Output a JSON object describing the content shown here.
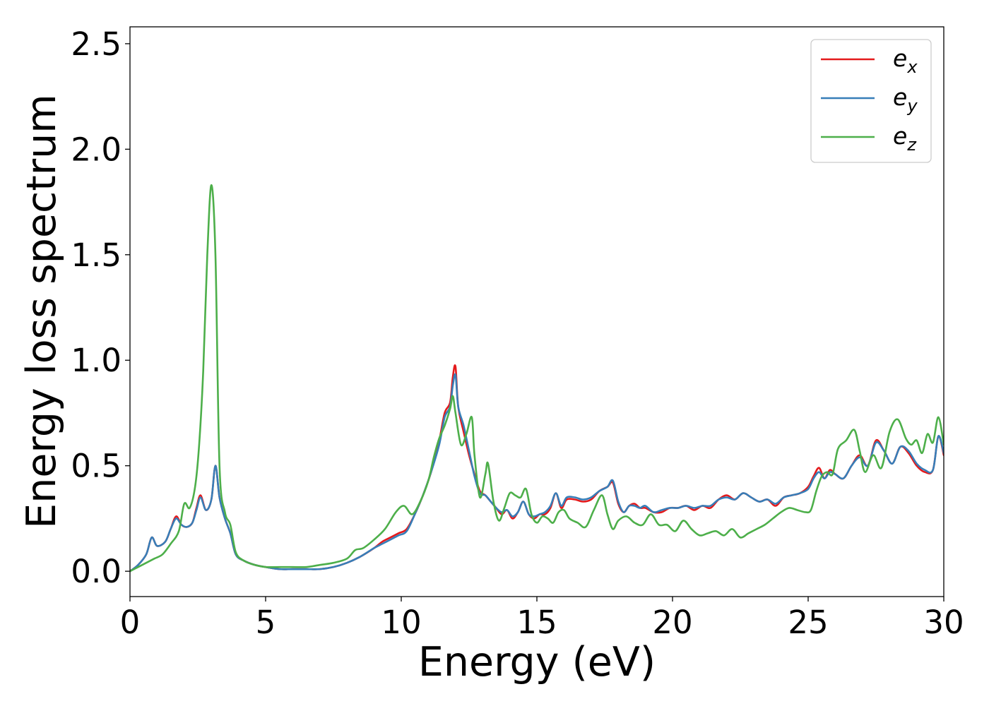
{
  "chart_data": {
    "type": "line",
    "title": "",
    "xlabel": "Energy (eV)",
    "ylabel": "Energy loss spectrum",
    "xlim": [
      0,
      30
    ],
    "ylim": [
      -0.12,
      2.58
    ],
    "xticks": [
      0,
      5,
      10,
      15,
      20,
      25,
      30
    ],
    "xtick_labels": [
      "0",
      "5",
      "10",
      "15",
      "20",
      "25",
      "30"
    ],
    "yticks": [
      0.0,
      0.5,
      1.0,
      1.5,
      2.0,
      2.5
    ],
    "ytick_labels": [
      "0.0",
      "0.5",
      "1.0",
      "1.5",
      "2.0",
      "2.5"
    ],
    "grid": false,
    "legend_position": "top-right",
    "series": [
      {
        "name": "e_x",
        "legend_main": "e",
        "legend_sub": "x",
        "color": "#e41a1c",
        "x": [
          0,
          0.3,
          0.6,
          0.8,
          1.0,
          1.3,
          1.5,
          1.7,
          1.9,
          2.1,
          2.3,
          2.45,
          2.6,
          2.8,
          3.0,
          3.15,
          3.3,
          3.5,
          3.7,
          3.9,
          4.2,
          4.6,
          5.0,
          5.5,
          6.0,
          6.5,
          7.0,
          7.5,
          8.0,
          8.5,
          9.0,
          9.3,
          9.6,
          9.9,
          10.2,
          10.5,
          10.8,
          11.1,
          11.4,
          11.6,
          11.8,
          11.9,
          12.0,
          12.1,
          12.3,
          12.5,
          12.7,
          12.9,
          13.1,
          13.3,
          13.5,
          13.7,
          13.9,
          14.1,
          14.3,
          14.5,
          14.7,
          14.9,
          15.1,
          15.3,
          15.5,
          15.7,
          15.9,
          16.1,
          16.4,
          16.7,
          17.0,
          17.3,
          17.6,
          17.8,
          18.0,
          18.2,
          18.4,
          18.6,
          18.8,
          19.0,
          19.3,
          19.6,
          19.9,
          20.2,
          20.5,
          20.8,
          21.1,
          21.4,
          21.7,
          22.0,
          22.3,
          22.6,
          22.9,
          23.2,
          23.5,
          23.8,
          24.1,
          24.4,
          24.7,
          25.0,
          25.2,
          25.4,
          25.6,
          25.8,
          26.0,
          26.3,
          26.6,
          26.9,
          27.2,
          27.5,
          27.8,
          28.1,
          28.4,
          28.7,
          29.0,
          29.3,
          29.6,
          29.8,
          30.0
        ],
        "y": [
          0.0,
          0.03,
          0.08,
          0.16,
          0.12,
          0.14,
          0.2,
          0.26,
          0.22,
          0.21,
          0.23,
          0.3,
          0.36,
          0.29,
          0.34,
          0.5,
          0.35,
          0.25,
          0.18,
          0.08,
          0.05,
          0.03,
          0.02,
          0.01,
          0.01,
          0.01,
          0.01,
          0.02,
          0.04,
          0.07,
          0.11,
          0.14,
          0.16,
          0.18,
          0.2,
          0.27,
          0.36,
          0.47,
          0.62,
          0.75,
          0.8,
          0.92,
          0.97,
          0.78,
          0.66,
          0.55,
          0.46,
          0.38,
          0.36,
          0.33,
          0.3,
          0.27,
          0.29,
          0.25,
          0.28,
          0.33,
          0.27,
          0.25,
          0.27,
          0.27,
          0.3,
          0.37,
          0.3,
          0.34,
          0.34,
          0.33,
          0.34,
          0.38,
          0.4,
          0.42,
          0.32,
          0.28,
          0.31,
          0.32,
          0.3,
          0.3,
          0.28,
          0.28,
          0.3,
          0.3,
          0.31,
          0.29,
          0.31,
          0.3,
          0.34,
          0.36,
          0.34,
          0.37,
          0.35,
          0.33,
          0.34,
          0.31,
          0.35,
          0.36,
          0.37,
          0.4,
          0.45,
          0.49,
          0.44,
          0.48,
          0.46,
          0.44,
          0.5,
          0.55,
          0.5,
          0.62,
          0.57,
          0.51,
          0.59,
          0.56,
          0.5,
          0.47,
          0.48,
          0.64,
          0.55
        ]
      },
      {
        "name": "e_y",
        "legend_main": "e",
        "legend_sub": "y",
        "color": "#377eb8",
        "x": [
          0,
          0.3,
          0.6,
          0.8,
          1.0,
          1.3,
          1.5,
          1.7,
          1.9,
          2.1,
          2.3,
          2.45,
          2.6,
          2.8,
          3.0,
          3.15,
          3.3,
          3.5,
          3.7,
          3.9,
          4.2,
          4.6,
          5.0,
          5.5,
          6.0,
          6.5,
          7.0,
          7.5,
          8.0,
          8.5,
          9.0,
          9.3,
          9.6,
          9.9,
          10.2,
          10.5,
          10.8,
          11.1,
          11.4,
          11.6,
          11.8,
          11.9,
          12.0,
          12.1,
          12.3,
          12.5,
          12.7,
          12.9,
          13.1,
          13.3,
          13.5,
          13.7,
          13.9,
          14.1,
          14.3,
          14.5,
          14.7,
          14.9,
          15.1,
          15.3,
          15.5,
          15.7,
          15.9,
          16.1,
          16.4,
          16.7,
          17.0,
          17.3,
          17.6,
          17.8,
          18.0,
          18.2,
          18.4,
          18.6,
          18.8,
          19.0,
          19.3,
          19.6,
          19.9,
          20.2,
          20.5,
          20.8,
          21.1,
          21.4,
          21.7,
          22.0,
          22.3,
          22.6,
          22.9,
          23.2,
          23.5,
          23.8,
          24.1,
          24.4,
          24.7,
          25.0,
          25.2,
          25.4,
          25.6,
          25.8,
          26.0,
          26.3,
          26.6,
          26.9,
          27.2,
          27.5,
          27.8,
          28.1,
          28.4,
          28.7,
          29.0,
          29.3,
          29.6,
          29.8,
          30.0
        ],
        "y": [
          0.0,
          0.03,
          0.08,
          0.16,
          0.12,
          0.14,
          0.2,
          0.25,
          0.22,
          0.21,
          0.23,
          0.29,
          0.35,
          0.29,
          0.34,
          0.5,
          0.35,
          0.25,
          0.18,
          0.08,
          0.05,
          0.03,
          0.02,
          0.01,
          0.01,
          0.01,
          0.01,
          0.02,
          0.04,
          0.07,
          0.11,
          0.13,
          0.15,
          0.17,
          0.19,
          0.27,
          0.36,
          0.47,
          0.6,
          0.73,
          0.78,
          0.88,
          0.93,
          0.78,
          0.69,
          0.57,
          0.45,
          0.37,
          0.36,
          0.33,
          0.3,
          0.28,
          0.29,
          0.26,
          0.28,
          0.33,
          0.27,
          0.26,
          0.27,
          0.28,
          0.31,
          0.37,
          0.31,
          0.35,
          0.35,
          0.34,
          0.35,
          0.38,
          0.4,
          0.43,
          0.33,
          0.28,
          0.31,
          0.31,
          0.3,
          0.31,
          0.28,
          0.29,
          0.3,
          0.3,
          0.31,
          0.3,
          0.31,
          0.31,
          0.34,
          0.35,
          0.34,
          0.37,
          0.35,
          0.33,
          0.34,
          0.32,
          0.35,
          0.36,
          0.37,
          0.39,
          0.44,
          0.47,
          0.44,
          0.47,
          0.46,
          0.44,
          0.5,
          0.54,
          0.5,
          0.61,
          0.57,
          0.51,
          0.59,
          0.57,
          0.51,
          0.48,
          0.48,
          0.64,
          0.56
        ]
      },
      {
        "name": "e_z",
        "legend_main": "e",
        "legend_sub": "z",
        "color": "#4daf4a",
        "x": [
          0,
          0.3,
          0.6,
          0.9,
          1.2,
          1.5,
          1.8,
          2.0,
          2.2,
          2.4,
          2.55,
          2.7,
          2.85,
          3.0,
          3.15,
          3.3,
          3.5,
          3.7,
          3.9,
          4.2,
          4.6,
          5.0,
          5.5,
          6.0,
          6.5,
          7.0,
          7.5,
          8.0,
          8.3,
          8.6,
          9.0,
          9.4,
          9.8,
          10.1,
          10.4,
          10.7,
          11.0,
          11.2,
          11.4,
          11.6,
          11.8,
          11.9,
          12.0,
          12.2,
          12.4,
          12.6,
          12.7,
          12.9,
          13.1,
          13.2,
          13.4,
          13.6,
          13.8,
          14.0,
          14.2,
          14.4,
          14.6,
          14.8,
          15.0,
          15.2,
          15.4,
          15.6,
          15.8,
          16.0,
          16.2,
          16.5,
          16.8,
          17.1,
          17.4,
          17.6,
          17.8,
          18.0,
          18.3,
          18.6,
          18.9,
          19.2,
          19.5,
          19.8,
          20.1,
          20.4,
          20.7,
          21.0,
          21.3,
          21.6,
          21.9,
          22.2,
          22.5,
          22.8,
          23.1,
          23.4,
          23.7,
          24.0,
          24.3,
          24.6,
          24.9,
          25.1,
          25.3,
          25.5,
          25.7,
          25.9,
          26.1,
          26.4,
          26.7,
          26.9,
          27.1,
          27.4,
          27.7,
          28.0,
          28.3,
          28.6,
          28.8,
          29.0,
          29.2,
          29.4,
          29.6,
          29.8,
          30.0
        ],
        "y": [
          0.0,
          0.02,
          0.04,
          0.06,
          0.08,
          0.13,
          0.19,
          0.32,
          0.3,
          0.4,
          0.6,
          0.95,
          1.5,
          1.83,
          1.5,
          0.5,
          0.28,
          0.22,
          0.09,
          0.05,
          0.03,
          0.02,
          0.02,
          0.02,
          0.02,
          0.03,
          0.04,
          0.06,
          0.1,
          0.11,
          0.15,
          0.2,
          0.28,
          0.31,
          0.27,
          0.33,
          0.43,
          0.54,
          0.63,
          0.69,
          0.77,
          0.83,
          0.75,
          0.6,
          0.65,
          0.73,
          0.55,
          0.35,
          0.46,
          0.51,
          0.33,
          0.24,
          0.3,
          0.37,
          0.36,
          0.35,
          0.39,
          0.27,
          0.23,
          0.26,
          0.25,
          0.23,
          0.28,
          0.29,
          0.25,
          0.23,
          0.21,
          0.29,
          0.36,
          0.27,
          0.2,
          0.24,
          0.26,
          0.23,
          0.22,
          0.27,
          0.22,
          0.22,
          0.19,
          0.24,
          0.2,
          0.17,
          0.18,
          0.19,
          0.17,
          0.2,
          0.16,
          0.18,
          0.2,
          0.22,
          0.25,
          0.28,
          0.3,
          0.29,
          0.28,
          0.29,
          0.38,
          0.45,
          0.47,
          0.46,
          0.58,
          0.62,
          0.67,
          0.57,
          0.47,
          0.55,
          0.49,
          0.66,
          0.72,
          0.63,
          0.6,
          0.62,
          0.56,
          0.65,
          0.61,
          0.73,
          0.6
        ]
      }
    ]
  }
}
